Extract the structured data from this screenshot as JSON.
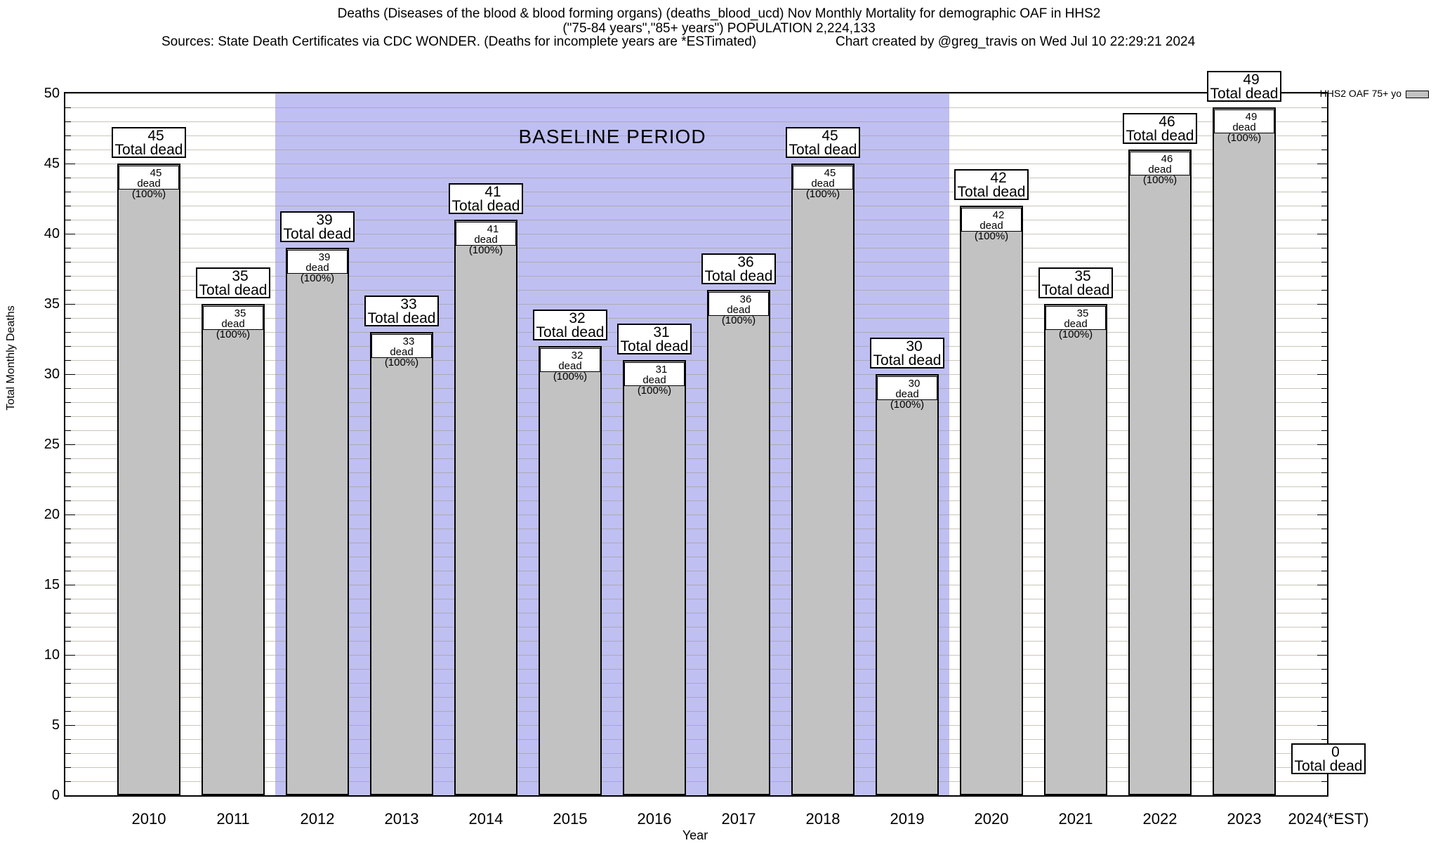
{
  "header": {
    "title_line1": "Deaths (Diseases of the blood & blood forming organs) (deaths_blood_ucd) Nov Monthly Mortality for demographic OAF in HHS2",
    "title_line2": "(\"75-84 years\",\"85+ years\") POPULATION 2,224,133",
    "sources": "Sources: State Death Certificates via CDC WONDER. (Deaths for incomplete years are *ESTimated)",
    "credit": "Chart created by @greg_travis on Wed Jul 10 22:29:21 2024"
  },
  "legend": {
    "label": "HHS2 OAF 75+ yo"
  },
  "axes": {
    "y_label": "Total Monthly Deaths",
    "x_label": "Year",
    "y_ticks": [
      0,
      5,
      10,
      15,
      20,
      25,
      30,
      35,
      40,
      45,
      50
    ]
  },
  "chart_data": {
    "type": "bar",
    "title": "Deaths (Diseases of the blood & blood forming organs) (deaths_blood_ucd) Nov Monthly Mortality for demographic OAF in HHS2",
    "subtitle": "(\"75-84 years\",\"85+ years\") POPULATION 2,224,133",
    "xlabel": "Year",
    "ylabel": "Total Monthly Deaths",
    "ylim": [
      0,
      50
    ],
    "grid": "on",
    "legend_position": "top-right",
    "categories": [
      "2010",
      "2011",
      "2012",
      "2013",
      "2014",
      "2015",
      "2016",
      "2017",
      "2018",
      "2019",
      "2020",
      "2021",
      "2022",
      "2023",
      "2024(*EST)"
    ],
    "series": [
      {
        "name": "HHS2 OAF 75+ yo",
        "values": [
          45,
          35,
          39,
          33,
          41,
          32,
          31,
          36,
          45,
          30,
          42,
          35,
          46,
          49,
          0
        ]
      }
    ],
    "bar_top_label_suffix": "Total dead",
    "bar_inner_label_suffix": "dead (100%)",
    "annotations": [
      {
        "label": "BASELINE PERIOD",
        "from_category": "2012",
        "to_category": "2019"
      }
    ]
  },
  "colors": {
    "bar_fill": "#c2c2c2",
    "bar_border": "#000000",
    "baseline_band": "#bfbff2",
    "label_box_bg": "#ffffff",
    "text": "#000000"
  }
}
